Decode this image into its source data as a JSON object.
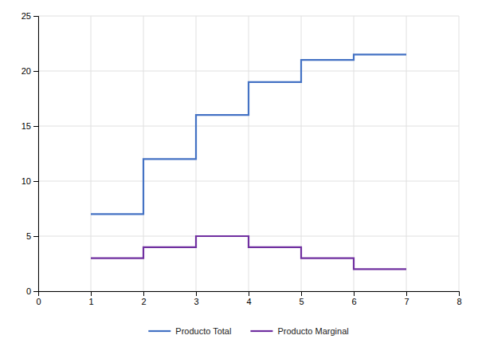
{
  "chart_data": {
    "type": "line",
    "x": [
      1,
      2,
      2,
      3,
      3,
      4,
      4,
      5,
      5,
      6,
      6,
      7
    ],
    "series": [
      {
        "name": "Producto Total",
        "color": "#4472C4",
        "values": [
          7,
          7,
          12,
          12,
          16,
          16,
          19,
          19,
          21,
          21,
          21.5,
          21.5
        ]
      },
      {
        "name": "Producto Marginal",
        "color": "#7030A0",
        "values": [
          3,
          3,
          4,
          4,
          5,
          5,
          4,
          4,
          3,
          3,
          2,
          2
        ]
      }
    ],
    "xlim": [
      0,
      8
    ],
    "ylim": [
      0,
      25
    ],
    "xticks": [
      0,
      1,
      2,
      3,
      4,
      5,
      6,
      7,
      8
    ],
    "yticks": [
      0,
      5,
      10,
      15,
      20,
      25
    ],
    "grid": true,
    "legend": "bottom"
  }
}
